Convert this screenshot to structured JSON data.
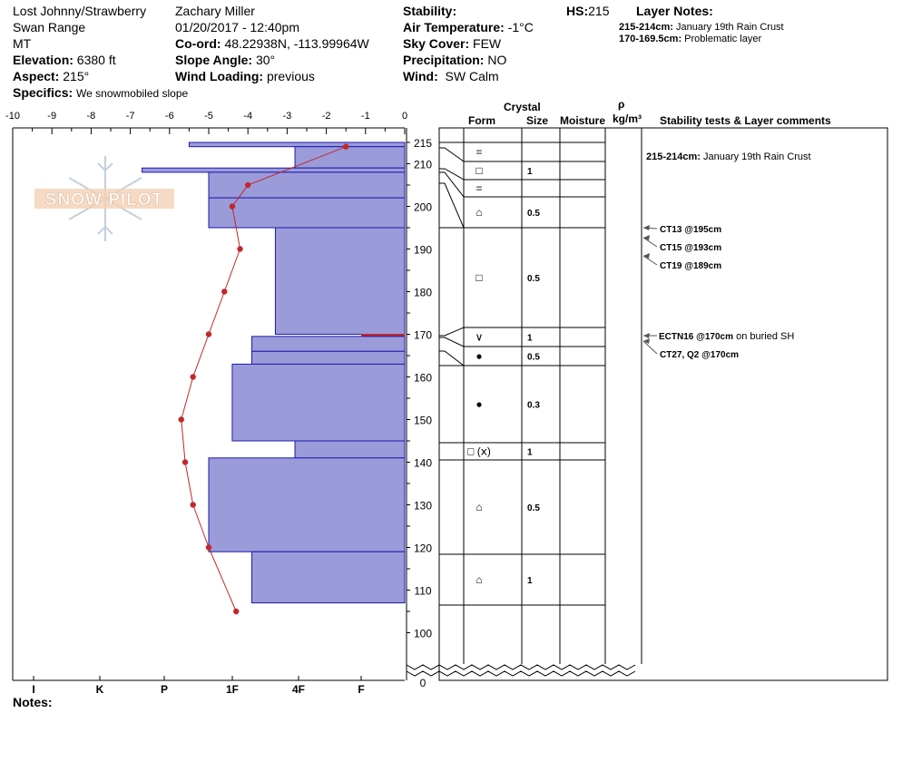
{
  "header": {
    "location": "Lost Johnny/Strawberry",
    "range": "Swan Range",
    "state": "MT",
    "elevation_label": "Elevation:",
    "elevation": "6380 ft",
    "aspect_label": "Aspect:",
    "aspect": "215°",
    "specifics_label": "Specifics:",
    "specifics": "We snowmobiled slope",
    "observer": "Zachary Miller",
    "datetime": "01/20/2017 - 12:40pm",
    "coord_label": "Co-ord:",
    "coord": "48.22938N, -113.99964W",
    "slope_label": "Slope Angle:",
    "slope": "30°",
    "wind_loading_label": "Wind Loading:",
    "wind_loading": "previous",
    "stability_label": "Stability:",
    "air_temp_label": "Air Temperature:",
    "air_temp": "-1°C",
    "sky_label": "Sky Cover:",
    "sky": "FEW",
    "precip_label": "Precipitation:",
    "precip": "NO",
    "wind_label": "Wind:",
    "wind": "SW Calm",
    "hs_label": "HS:",
    "hs": "215",
    "layer_notes_label": "Layer Notes:",
    "layer_notes": [
      {
        "range": "215-214cm:",
        "text": "January 19th Rain Crust"
      },
      {
        "range": "170-169.5cm:",
        "text": "Problematic layer"
      }
    ]
  },
  "logo_text": "SNOW PILOT",
  "notes_label": "Notes:",
  "columns": {
    "crystal": "Crystal",
    "form": "Form",
    "size": "Size",
    "moisture": "Moisture",
    "rho": "ρ",
    "density_unit": "kg/m³",
    "stability": "Stability tests & Layer comments"
  },
  "temp_axis": [
    "-10",
    "-9",
    "-8",
    "-7",
    "-6",
    "-5",
    "-4",
    "-3",
    "-2",
    "-1",
    "0"
  ],
  "hardness_axis": [
    "I",
    "K",
    "P",
    "1F",
    "4F",
    "F"
  ],
  "height_ticks": [
    "215",
    "210",
    "200",
    "190",
    "180",
    "170",
    "160",
    "150",
    "140",
    "130",
    "120",
    "110",
    "100",
    "0"
  ],
  "colors": {
    "profile_fill": "#9b9bd9",
    "profile_stroke": "#1a1ab0",
    "temp_line": "#c0282a",
    "crust": "#c0282a"
  },
  "chart_data": {
    "type": "snow_profile",
    "hardness_profile": [
      {
        "top": 215,
        "bottom": 214,
        "hardness_temp_scale": -5.5
      },
      {
        "top": 214,
        "bottom": 209,
        "hardness_temp_scale": -2.8
      },
      {
        "top": 209,
        "bottom": 208,
        "hardness_temp_scale": -6.7
      },
      {
        "top": 208,
        "bottom": 202,
        "hardness_temp_scale": -5.0
      },
      {
        "top": 202,
        "bottom": 195,
        "hardness_temp_scale": -5.0
      },
      {
        "top": 195,
        "bottom": 170,
        "hardness_temp_scale": -3.3
      },
      {
        "top": 170,
        "bottom": 169.5,
        "hardness_temp_scale": -1.1,
        "color": "#c0282a"
      },
      {
        "top": 169.5,
        "bottom": 166,
        "hardness_temp_scale": -3.9
      },
      {
        "top": 166,
        "bottom": 163,
        "hardness_temp_scale": -3.9
      },
      {
        "top": 163,
        "bottom": 145,
        "hardness_temp_scale": -4.4
      },
      {
        "top": 145,
        "bottom": 141,
        "hardness_temp_scale": -2.8
      },
      {
        "top": 141,
        "bottom": 119,
        "hardness_temp_scale": -5.0
      },
      {
        "top": 119,
        "bottom": 107,
        "hardness_temp_scale": -3.9
      }
    ],
    "temperature_profile": [
      {
        "height": 214,
        "temp": -1.5
      },
      {
        "height": 205,
        "temp": -4.0
      },
      {
        "height": 200,
        "temp": -4.4
      },
      {
        "height": 190,
        "temp": -4.2
      },
      {
        "height": 180,
        "temp": -4.6
      },
      {
        "height": 170,
        "temp": -5.0
      },
      {
        "height": 160,
        "temp": -5.4
      },
      {
        "height": 150,
        "temp": -5.7
      },
      {
        "height": 140,
        "temp": -5.6
      },
      {
        "height": 130,
        "temp": -5.4
      },
      {
        "height": 120,
        "temp": -5.0
      },
      {
        "height": 105,
        "temp": -4.3
      }
    ],
    "layers": [
      {
        "top": 215,
        "bottom": 214,
        "form": "",
        "size": ""
      },
      {
        "top": 214,
        "bottom": 209,
        "form": "=",
        "size": ""
      },
      {
        "top": 209,
        "bottom": 208,
        "form": "□",
        "size": "1"
      },
      {
        "top": 208,
        "bottom": 202,
        "form": "=",
        "size": ""
      },
      {
        "top": 202,
        "bottom": 195,
        "form": "⌂",
        "size": "0.5"
      },
      {
        "top": 195,
        "bottom": 170,
        "form": "□",
        "size": "0.5"
      },
      {
        "top": 170,
        "bottom": 169.5,
        "form": "∨",
        "size": "1"
      },
      {
        "top": 169.5,
        "bottom": 166,
        "form": "●",
        "size": "0.5"
      },
      {
        "top": 166,
        "bottom": 163,
        "form": "",
        "size": ""
      },
      {
        "top": 163,
        "bottom": 145,
        "form": "●",
        "size": "0.3"
      },
      {
        "top": 145,
        "bottom": 141,
        "form": "□ (ⅹ)",
        "size": "1"
      },
      {
        "top": 141,
        "bottom": 119,
        "form": "⌂",
        "size": "0.5"
      },
      {
        "top": 119,
        "bottom": 107,
        "form": "⌂",
        "size": "1"
      }
    ],
    "comments": [
      {
        "height": 214.5,
        "bold": "215-214cm:",
        "text": "January 19th Rain Crust",
        "arrow": false
      },
      {
        "height": 195,
        "bold": "CT13 @195cm",
        "text": "",
        "arrow": true
      },
      {
        "height": 193,
        "bold": "CT15 @193cm",
        "text": "",
        "arrow": true
      },
      {
        "height": 189,
        "bold": "CT19 @189cm",
        "text": "",
        "arrow": true
      },
      {
        "height": 170,
        "bold": "ECTN16 @170cm",
        "text": "on buried SH",
        "arrow": true
      },
      {
        "height": 170,
        "bold": "CT27, Q2 @170cm",
        "text": "",
        "arrow": true
      }
    ]
  }
}
